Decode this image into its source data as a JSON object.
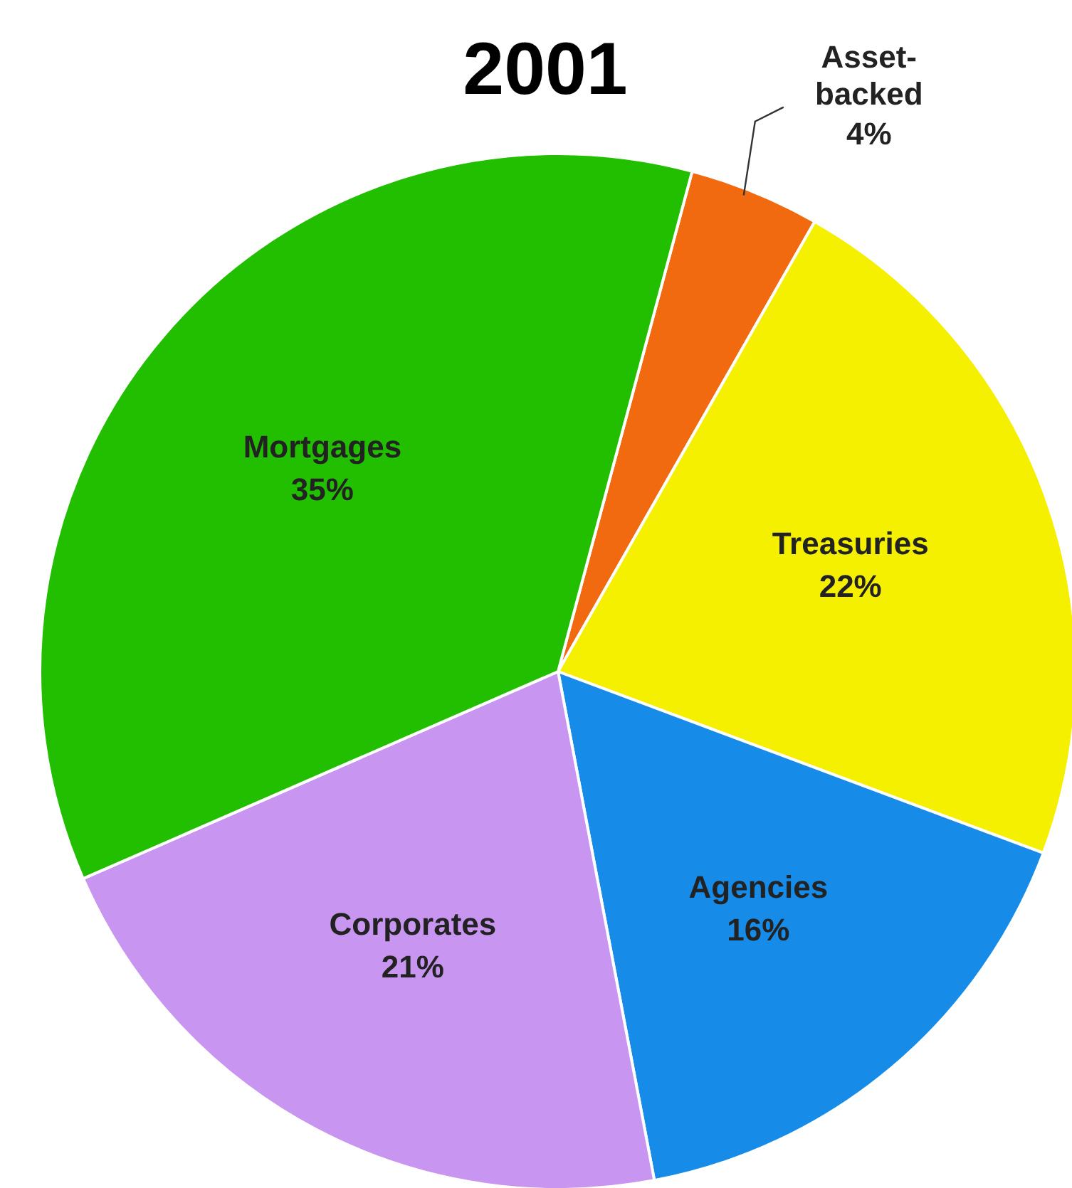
{
  "chart_data": {
    "type": "pie",
    "title": "2001",
    "categories": [
      "Asset-backed",
      "Treasuries",
      "Agencies",
      "Corporates",
      "Mortgages"
    ],
    "values": [
      4,
      22,
      16,
      21,
      35
    ],
    "value_labels": [
      "4%",
      "22%",
      "16%",
      "21%",
      "35%"
    ],
    "colors": [
      "#f26a10",
      "#f5f000",
      "#168ce8",
      "#c896f0",
      "#22bf00"
    ]
  }
}
